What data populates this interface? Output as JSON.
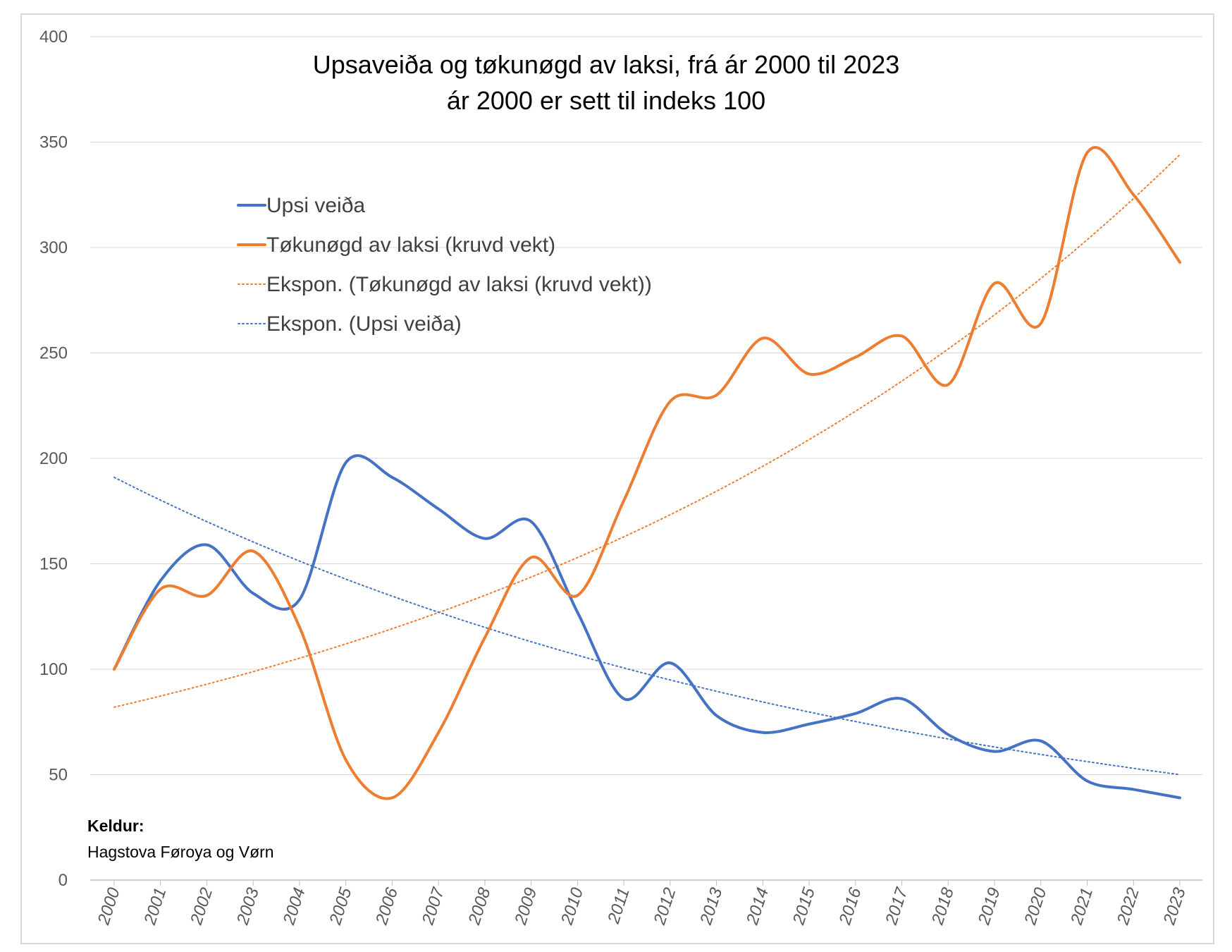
{
  "chart_data": {
    "type": "line",
    "title": "Upsaveiða og tøkunøgd av laksi, frá ár 2000 til 2023",
    "subtitle": "ár 2000 er sett til indeks 100",
    "ylim": [
      0,
      400
    ],
    "yticks": [
      0,
      50,
      100,
      150,
      200,
      250,
      300,
      350,
      400
    ],
    "x": [
      "2000",
      "2001",
      "2002",
      "2003",
      "2004",
      "2005",
      "2006",
      "2007",
      "2008",
      "2009",
      "2010",
      "2011",
      "2012",
      "2013",
      "2014",
      "2015",
      "2016",
      "2017",
      "2018",
      "2019",
      "2020",
      "2021",
      "2022",
      "2023"
    ],
    "grid": true,
    "legend_position": "upper-left",
    "series": [
      {
        "name": "Upsi veiða",
        "style": "solid",
        "color": "#4472C4",
        "values": [
          100,
          142,
          159,
          136,
          133,
          198,
          191,
          176,
          162,
          170,
          127,
          86,
          103,
          78,
          70,
          74,
          79,
          86,
          69,
          61,
          66,
          47,
          43,
          39
        ]
      },
      {
        "name": "Tøkunøgd av laksi (kruvd vekt)",
        "style": "solid",
        "color": "#ED7D31",
        "values": [
          100,
          138,
          135,
          156,
          120,
          57,
          39,
          70,
          115,
          153,
          135,
          180,
          227,
          230,
          257,
          240,
          248,
          258,
          235,
          283,
          264,
          345,
          325,
          293
        ]
      },
      {
        "name": "Ekspon. (Tøkunøgd av laksi (kruvd vekt))",
        "style": "dotted",
        "color": "#ED7D31",
        "trend": {
          "start": 82,
          "end": 344
        }
      },
      {
        "name": "Ekspon. (Upsi veiða)",
        "style": "dotted",
        "color": "#4472C4",
        "trend": {
          "start": 191,
          "end": 50
        }
      }
    ]
  },
  "source": {
    "heading": "Keldur:",
    "text": "Hagstova Føroya og Vørn"
  }
}
